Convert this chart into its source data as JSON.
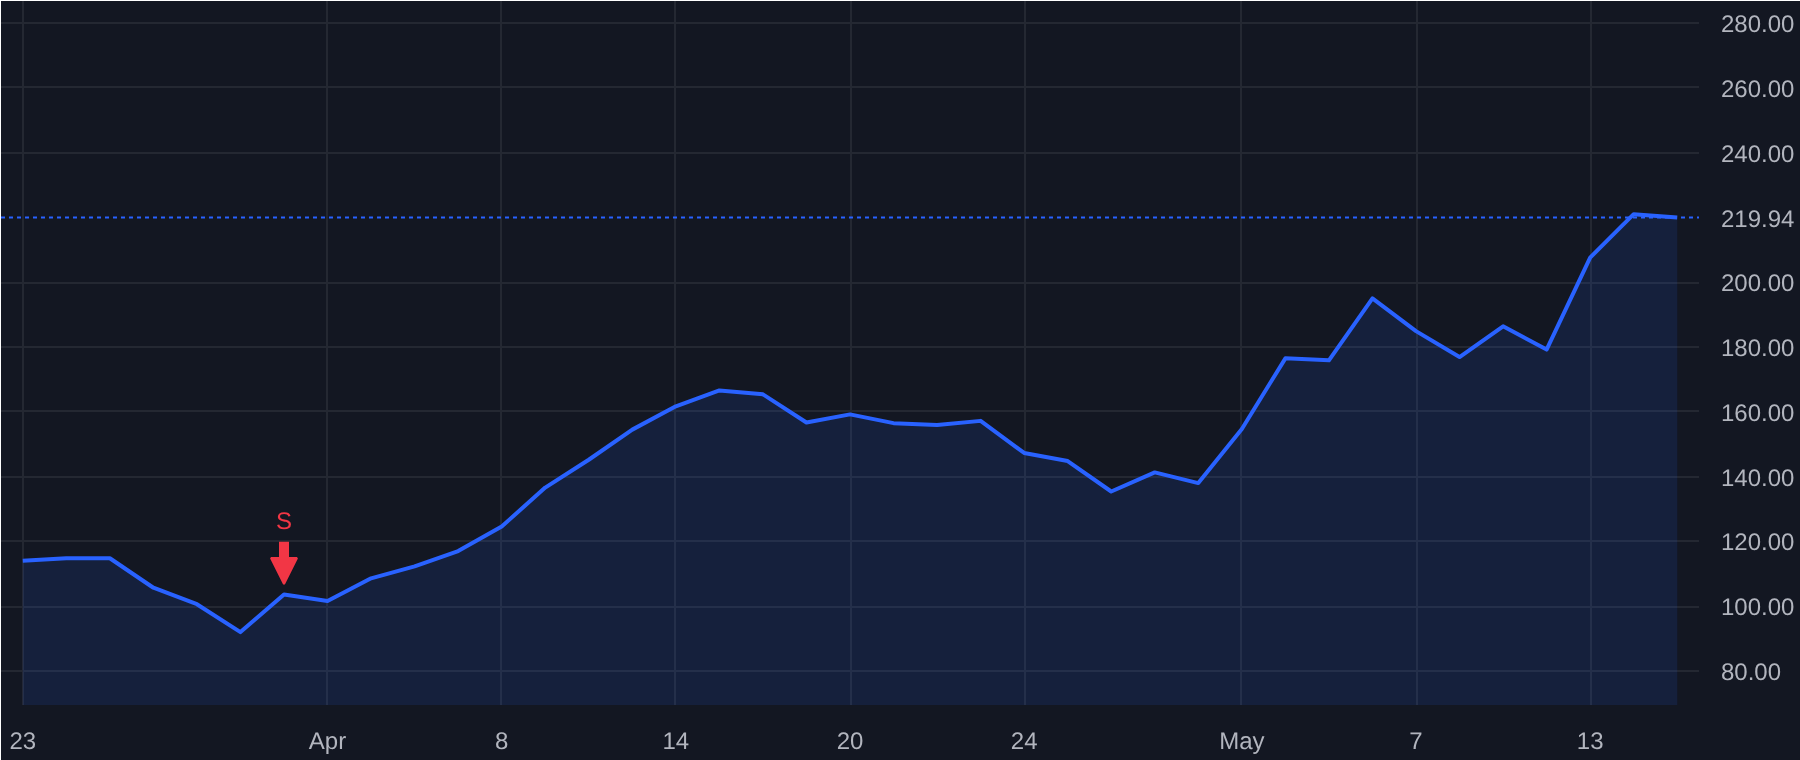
{
  "chart_data": {
    "type": "area",
    "categories": [
      "23",
      null,
      null,
      null,
      null,
      null,
      null,
      "Apr",
      null,
      null,
      null,
      "8",
      null,
      null,
      null,
      "14",
      null,
      null,
      null,
      "20",
      null,
      null,
      null,
      "24",
      null,
      null,
      null,
      null,
      "May",
      null,
      null,
      null,
      "7",
      null,
      null,
      null,
      "13",
      null,
      null
    ],
    "series": [
      {
        "color": "#2962ff",
        "values": [
          114.0,
          114.8,
          114.8,
          105.7,
          100.6,
          92.0,
          103.6,
          101.6,
          108.6,
          112.3,
          117.0,
          124.6,
          136.6,
          145.2,
          154.5,
          161.7,
          166.6,
          165.4,
          156.7,
          159.2,
          156.5,
          155.9,
          157.2,
          147.3,
          144.8,
          135.4,
          141.3,
          138.0,
          154.7,
          176.5,
          175.9,
          195.0,
          184.9,
          176.9,
          186.4,
          179.2,
          207.6,
          221.0,
          219.94
        ]
      }
    ],
    "ylim": [
      69.5,
      286.8
    ],
    "yticks": [
      {
        "value": 80,
        "label": "80.00"
      },
      {
        "value": 100,
        "label": "100.00"
      },
      {
        "value": 120,
        "label": "120.00"
      },
      {
        "value": 140,
        "label": "140.00"
      },
      {
        "value": 160,
        "label": "160.00"
      },
      {
        "value": 180,
        "label": "180.00"
      },
      {
        "value": 200,
        "label": "200.00"
      },
      {
        "value": 240,
        "label": "240.00"
      },
      {
        "value": 260,
        "label": "260.00"
      },
      {
        "value": 280,
        "label": "280.00"
      }
    ],
    "ref_lines": [
      {
        "axis": "y",
        "value": 219.94,
        "label": "219.94",
        "color": "#2962ff",
        "line_style": "dotted"
      }
    ],
    "annotations": [
      {
        "text": "S",
        "y": 103.6
      }
    ],
    "grid": true,
    "marker": "none",
    "line_style": "solid"
  }
}
